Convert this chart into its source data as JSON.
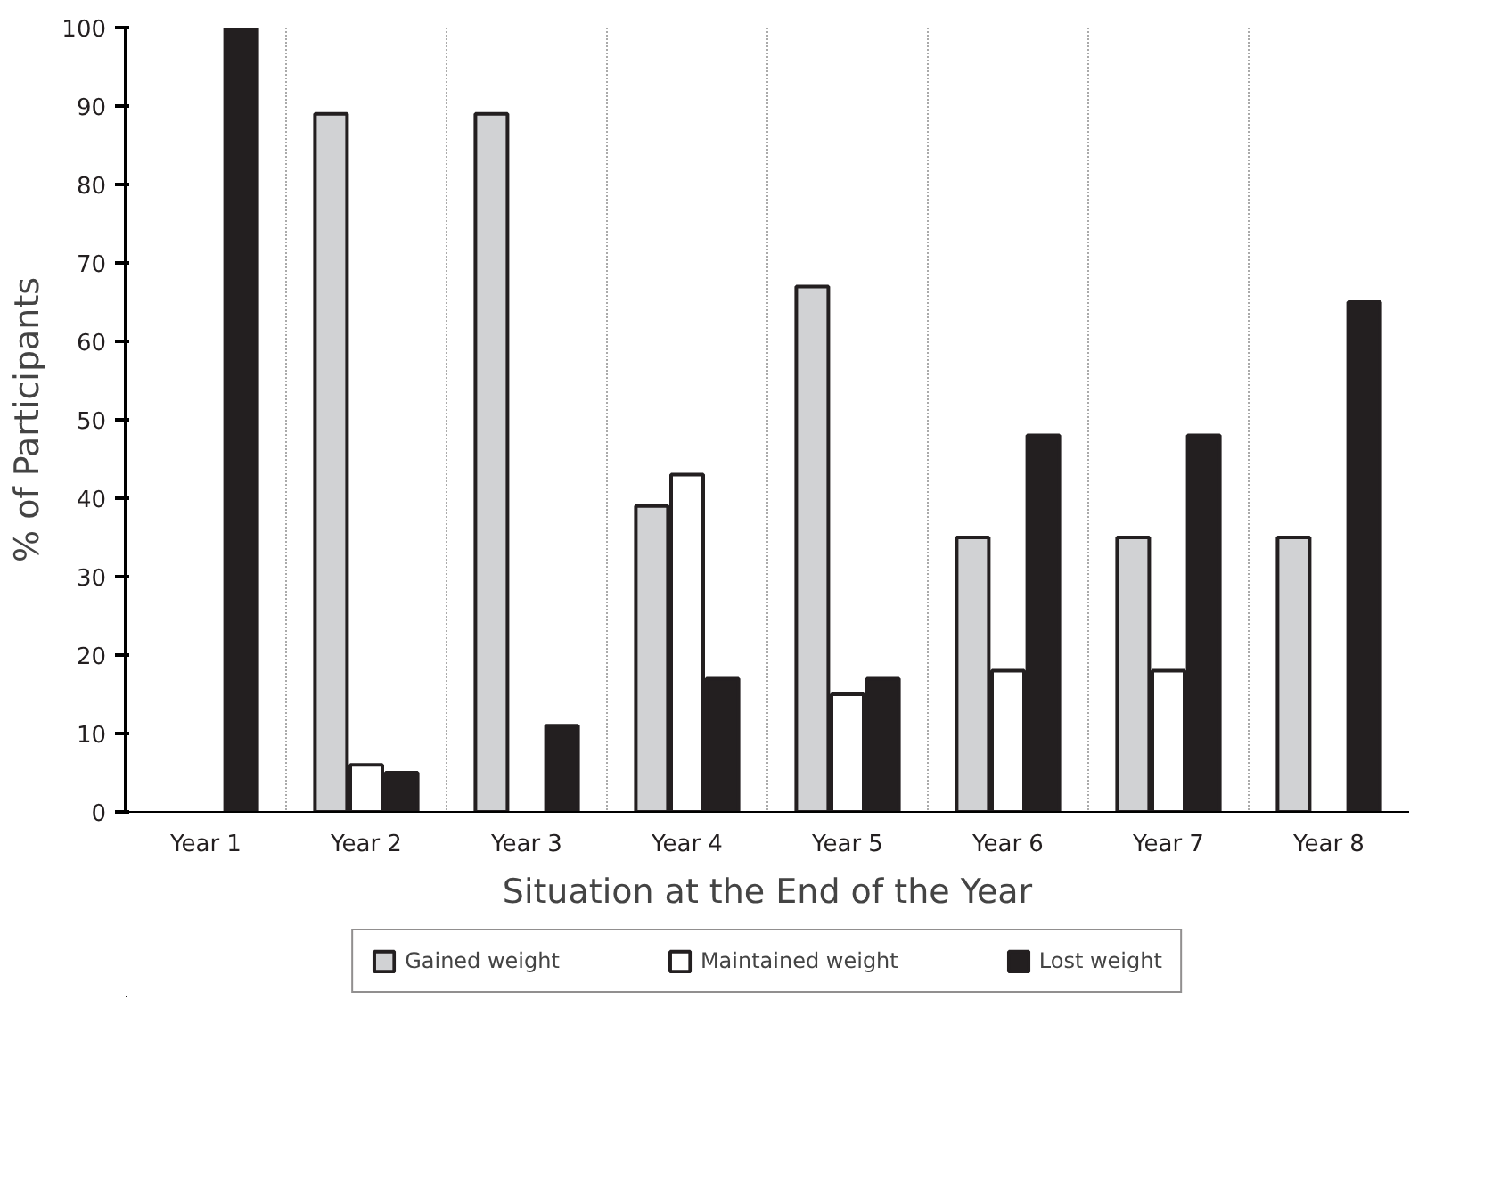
{
  "chart_data": {
    "type": "bar",
    "xlabel": "Situation at the End of the Year",
    "ylabel": "% of Participants",
    "categories": [
      "Year 1",
      "Year 2",
      "Year 3",
      "Year 4",
      "Year 5",
      "Year 6",
      "Year 7",
      "Year 8"
    ],
    "series": [
      {
        "name": "Gained weight",
        "color": "#d1d2d4",
        "values": [
          null,
          89,
          89,
          39,
          67,
          35,
          35,
          35
        ]
      },
      {
        "name": "Maintained weight",
        "color": "#ffffff",
        "values": [
          null,
          6,
          null,
          43,
          15,
          18,
          18,
          null
        ]
      },
      {
        "name": "Lost weight",
        "color": "#231f20",
        "values": [
          100,
          5,
          11,
          17,
          17,
          48,
          48,
          65
        ]
      }
    ],
    "ylim": [
      0,
      100
    ],
    "yticks": [
      0,
      10,
      20,
      30,
      40,
      50,
      60,
      70,
      80,
      90,
      100
    ],
    "grid": "x",
    "legend": "bottom"
  }
}
